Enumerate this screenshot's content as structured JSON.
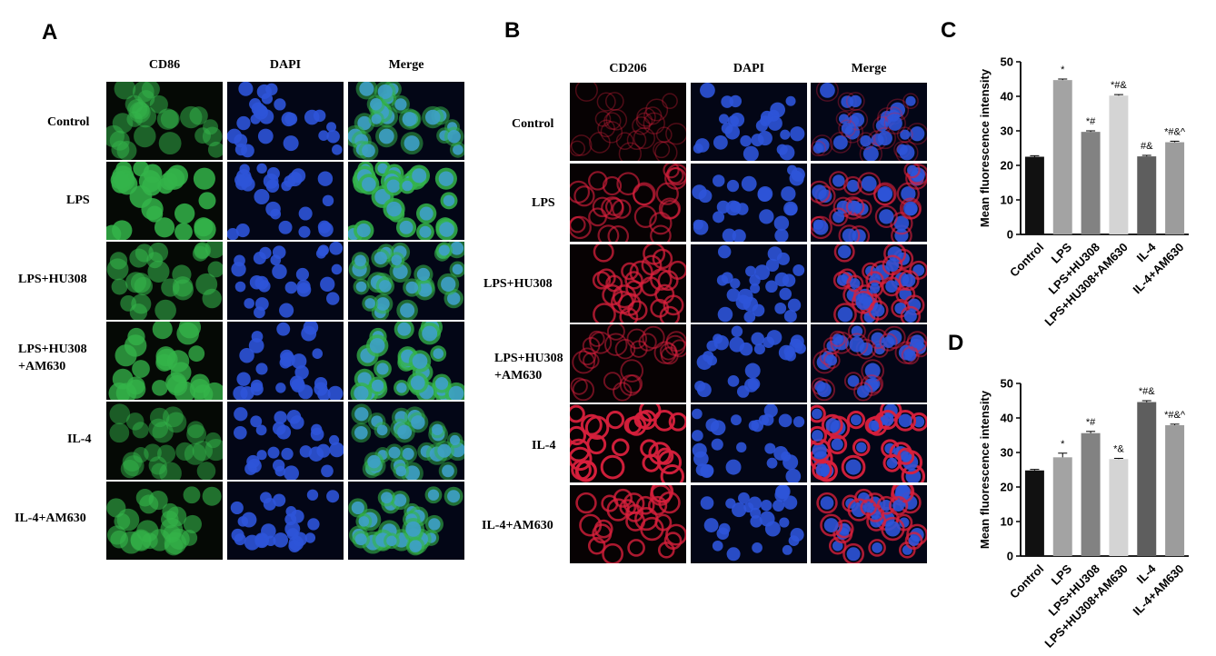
{
  "panels": {
    "a": {
      "letter": "A",
      "columns": [
        "CD86",
        "DAPI",
        "Merge"
      ],
      "rows": [
        [
          "Control"
        ],
        [
          "LPS"
        ],
        [
          "LPS+HU308"
        ],
        [
          "LPS+HU308",
          "+AM630"
        ],
        [
          "IL-4"
        ],
        [
          "IL-4+AM630"
        ]
      ]
    },
    "b": {
      "letter": "B",
      "columns": [
        "CD206",
        "DAPI",
        "Merge"
      ],
      "rows": [
        [
          "Control"
        ],
        [
          "LPS"
        ],
        [
          "LPS+HU308"
        ],
        [
          "LPS+HU308",
          "+AM630"
        ],
        [
          "IL-4"
        ],
        [
          "IL-4+AM630"
        ]
      ]
    },
    "c": {
      "letter": "C"
    },
    "d": {
      "letter": "D"
    }
  },
  "colors": {
    "green_cell": "#34b44a",
    "blue_nucleus": "#2e54d8",
    "red_membrane": "#d8203c",
    "bar_colors": [
      "#111111",
      "#a3a3a3",
      "#828282",
      "#d4d4d4",
      "#5e5e5e",
      "#9c9c9c"
    ]
  },
  "chart_data": [
    {
      "type": "bar",
      "title": "",
      "ylabel": "Mean fluorescence intensity",
      "xlabel": "",
      "categories": [
        "Control",
        "LPS",
        "LPS+HU308",
        "LPS+HU308+AM630",
        "IL-4",
        "IL-4+AM630"
      ],
      "values": [
        22.5,
        44.7,
        29.7,
        40.2,
        22.6,
        26.7
      ],
      "errors": [
        0.3,
        0.3,
        0.3,
        0.3,
        0.3,
        0.3
      ],
      "annotations": [
        "",
        "*",
        "*#",
        "*#&",
        "#&",
        "*#&^"
      ],
      "ylim": [
        0,
        50
      ],
      "yticks": [
        0,
        10,
        20,
        30,
        40,
        50
      ],
      "grid": false,
      "legend": "none"
    },
    {
      "type": "bar",
      "title": "",
      "ylabel": "Mean fluorescence intensity",
      "xlabel": "",
      "categories": [
        "Control",
        "LPS",
        "LPS+HU308",
        "LPS+HU308+AM630",
        "IL-4",
        "IL-4+AM630"
      ],
      "values": [
        24.8,
        28.6,
        35.6,
        28.1,
        44.6,
        37.9
      ],
      "errors": [
        0.3,
        1.2,
        0.5,
        0.2,
        0.4,
        0.3
      ],
      "annotations": [
        "",
        "*",
        "*#",
        "*&",
        "*#&",
        "*#&^"
      ],
      "ylim": [
        0,
        50
      ],
      "yticks": [
        0,
        10,
        20,
        30,
        40,
        50
      ],
      "grid": false,
      "legend": "none"
    }
  ]
}
